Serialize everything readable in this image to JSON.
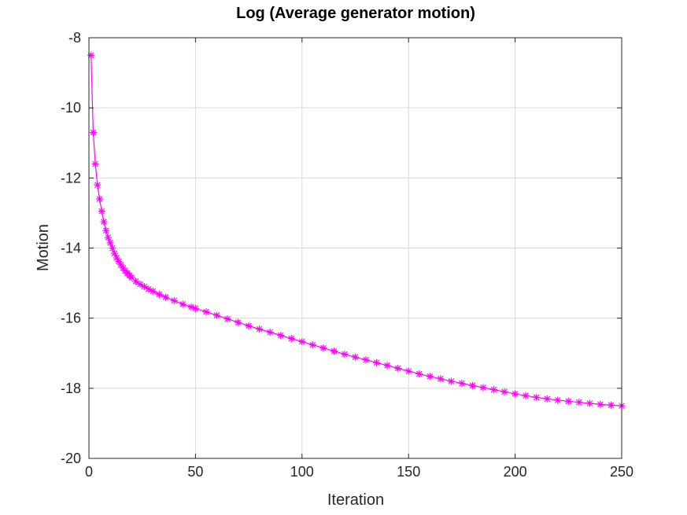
{
  "chart_data": {
    "type": "line",
    "title": "Log (Average generator motion)",
    "xlabel": "Iteration",
    "ylabel": "Motion",
    "xlim": [
      0,
      250
    ],
    "ylim": [
      -20,
      -8
    ],
    "xticks": [
      0,
      50,
      100,
      150,
      200,
      250
    ],
    "yticks": [
      -20,
      -18,
      -16,
      -14,
      -12,
      -10,
      -8
    ],
    "xtick_labels": [
      "0",
      "50",
      "100",
      "150",
      "200",
      "250"
    ],
    "ytick_labels": [
      "-20",
      "-18",
      "-16",
      "-14",
      "-12",
      "-10",
      "-8"
    ],
    "grid": true,
    "marker": "asterisk",
    "series": [
      {
        "color": "#ff00ff",
        "x": [
          1,
          2,
          3,
          4,
          5,
          6,
          7,
          8,
          9,
          10,
          11,
          12,
          13,
          14,
          15,
          16,
          17,
          18,
          19,
          20,
          22,
          24,
          26,
          28,
          30,
          33,
          36,
          40,
          44,
          48,
          50,
          55,
          60,
          65,
          70,
          75,
          80,
          85,
          90,
          95,
          100,
          105,
          110,
          115,
          120,
          125,
          130,
          135,
          140,
          145,
          150,
          155,
          160,
          165,
          170,
          175,
          180,
          185,
          190,
          195,
          200,
          205,
          210,
          215,
          220,
          225,
          230,
          235,
          240,
          245,
          250
        ],
        "y": [
          -8.5,
          -10.7,
          -11.6,
          -12.2,
          -12.6,
          -12.95,
          -13.25,
          -13.5,
          -13.7,
          -13.85,
          -14.0,
          -14.15,
          -14.28,
          -14.38,
          -14.48,
          -14.57,
          -14.65,
          -14.72,
          -14.78,
          -14.84,
          -14.95,
          -15.03,
          -15.1,
          -15.17,
          -15.23,
          -15.32,
          -15.4,
          -15.5,
          -15.6,
          -15.68,
          -15.72,
          -15.82,
          -15.92,
          -16.02,
          -16.12,
          -16.22,
          -16.31,
          -16.4,
          -16.49,
          -16.58,
          -16.67,
          -16.76,
          -16.85,
          -16.94,
          -17.03,
          -17.11,
          -17.19,
          -17.27,
          -17.35,
          -17.43,
          -17.51,
          -17.59,
          -17.66,
          -17.73,
          -17.8,
          -17.86,
          -17.92,
          -17.98,
          -18.04,
          -18.1,
          -18.16,
          -18.21,
          -18.26,
          -18.3,
          -18.34,
          -18.37,
          -18.4,
          -18.43,
          -18.46,
          -18.48,
          -18.5
        ]
      }
    ]
  }
}
